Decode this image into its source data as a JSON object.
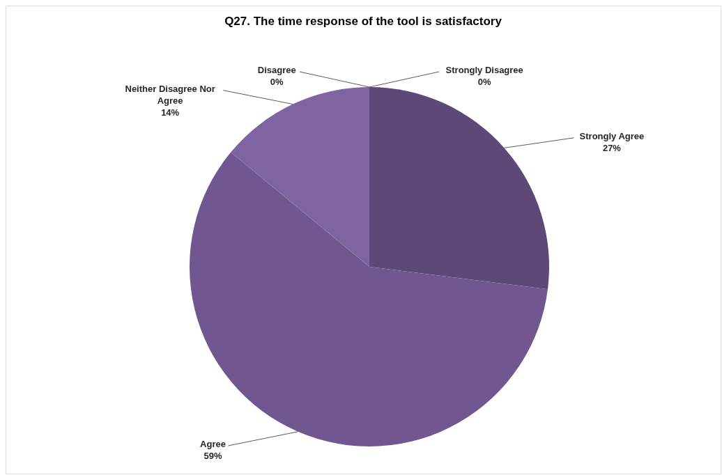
{
  "chart_data": {
    "type": "pie",
    "title": "Q27. The time response of the tool is satisfactory",
    "categories": [
      "Strongly Agree",
      "Agree",
      "Neither Disagree Nor Agree",
      "Disagree",
      "Strongly Disagree"
    ],
    "values": [
      27,
      59,
      14,
      0,
      0
    ],
    "colors": [
      "#5e4878",
      "#71568f",
      "#8064a2",
      "#9b86b9",
      "#b5a6cd"
    ],
    "value_labels": [
      "27%",
      "59%",
      "14%",
      "0%",
      "0%"
    ]
  }
}
